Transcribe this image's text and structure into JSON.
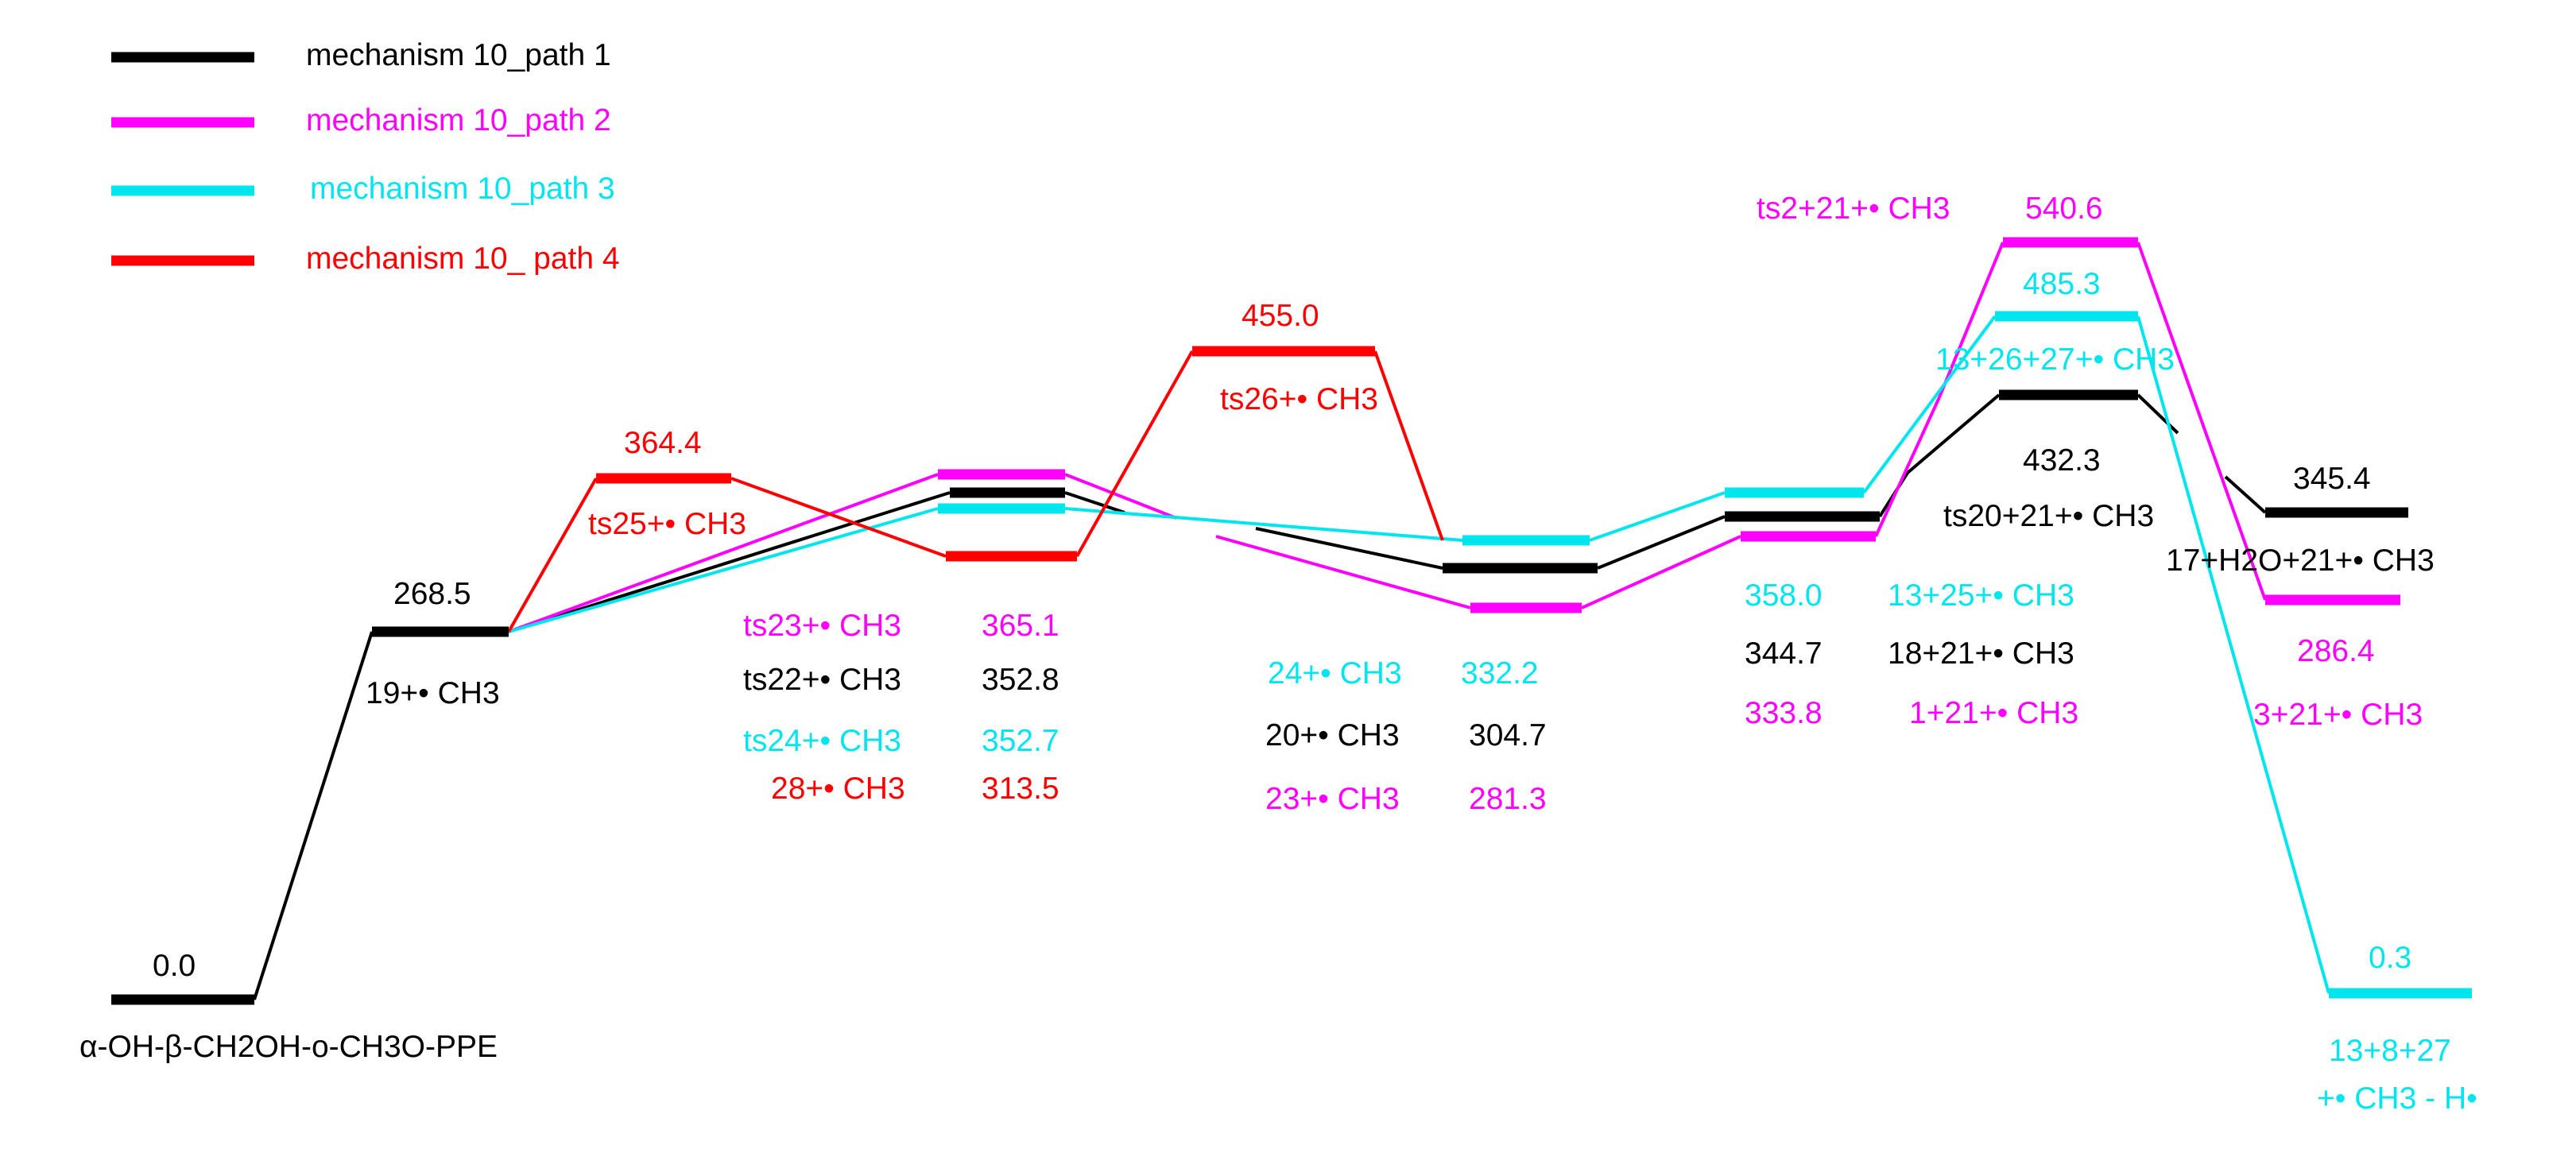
{
  "colors": {
    "path1": "#000000",
    "path2": "#ff00ff",
    "path3": "#00e5ee",
    "path4": "#ff0000"
  },
  "legend": [
    {
      "label": "mechanism 10_path 1",
      "color": "path1"
    },
    {
      "label": "mechanism 10_path 2",
      "color": "path2"
    },
    {
      "label": "mechanism 10_path 3",
      "color": "path3"
    },
    {
      "label": "mechanism 10_ path 4",
      "color": "path4"
    }
  ],
  "species": {
    "start": {
      "label": "α-OH-β-CH2OH-o-CH3O-PPE",
      "energy": "0.0"
    },
    "s19": {
      "label": "19+• CH3",
      "energy": "268.5"
    },
    "ts25": {
      "label": "ts25+• CH3",
      "energy": "364.4"
    },
    "ts23": {
      "label": "ts23+• CH3",
      "energy": "365.1"
    },
    "ts22": {
      "label": "ts22+• CH3",
      "energy": "352.8"
    },
    "ts24": {
      "label": "ts24+• CH3",
      "energy": "352.7"
    },
    "s28": {
      "label": "28+• CH3",
      "energy": "313.5"
    },
    "ts26": {
      "label": "ts26+• CH3",
      "energy": "455.0"
    },
    "s24": {
      "label": "24+• CH3",
      "energy": "332.2"
    },
    "s20": {
      "label": "20+• CH3",
      "energy": "304.7"
    },
    "s23": {
      "label": "23+• CH3",
      "energy": "281.3"
    },
    "s13_25": {
      "label": "13+25+• CH3",
      "energy": "358.0"
    },
    "s18_21": {
      "label": "18+21+• CH3",
      "energy": "344.7"
    },
    "s1_21": {
      "label": "1+21+• CH3",
      "energy": "333.8"
    },
    "ts2_21": {
      "label": "ts2+21+• CH3",
      "energy": "540.6"
    },
    "ts13_26_27": {
      "label": "13+26+27+• CH3",
      "energy": "485.3"
    },
    "ts20_21": {
      "label": "ts20+21+• CH3",
      "energy": "432.3"
    },
    "s17_h2o_21": {
      "label": "17+H2O+21+• CH3",
      "energy": "345.4"
    },
    "s3_21": {
      "label": "3+21+• CH3",
      "energy": "286.4"
    },
    "s13_8_27": {
      "label_line1": "13+8+27",
      "label_line2": "+• CH3 - H•",
      "energy": "0.3"
    }
  }
}
